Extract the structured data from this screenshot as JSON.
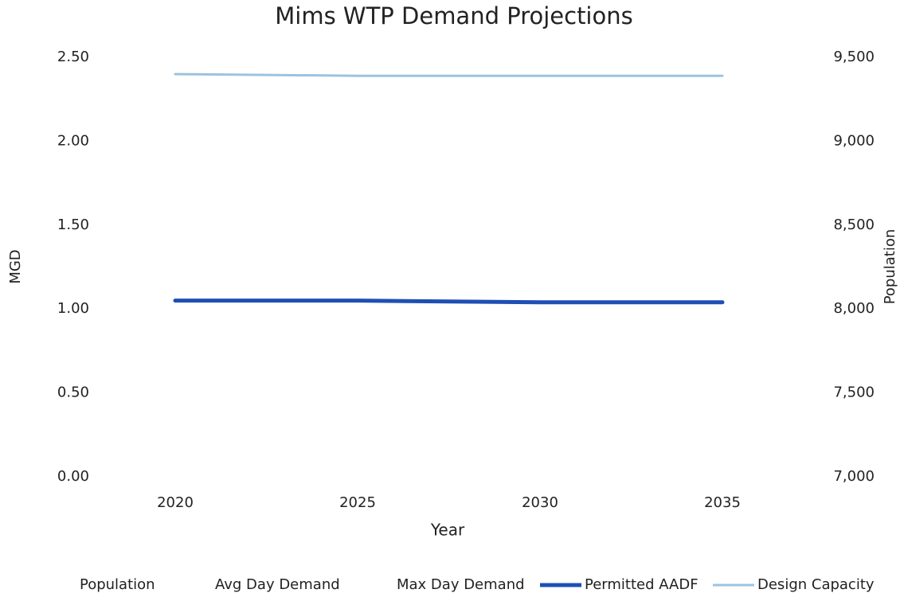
{
  "chart_data": {
    "type": "line",
    "title": "Mims WTP Demand Projections",
    "x_label": "Year",
    "y_label": "MGD",
    "y2_label": "Population",
    "categories": [
      "2020",
      "2025",
      "2030",
      "2035"
    ],
    "series": [
      {
        "name": "Population",
        "color": "#ffffff",
        "axis": "y2",
        "values": [
          null,
          null,
          null,
          null
        ]
      },
      {
        "name": "Avg Day Demand",
        "color": "#ffffff",
        "values": [
          null,
          null,
          null,
          null
        ]
      },
      {
        "name": "Max Day Demand",
        "color": "#ffffff",
        "values": [
          null,
          null,
          null,
          null
        ]
      },
      {
        "name": "Permitted AADF",
        "color": "#1f4fb5",
        "values": [
          1.05,
          1.05,
          1.04,
          1.04
        ]
      },
      {
        "name": "Design Capacity",
        "color": "#9cc3e0",
        "values": [
          2.4,
          2.39,
          2.39,
          2.39
        ]
      }
    ],
    "ylim": [
      0,
      2.5
    ],
    "yticks": [
      {
        "value": 0,
        "label": "0.00"
      },
      {
        "value": 0.5,
        "label": "0.50"
      },
      {
        "value": 1,
        "label": "1.00"
      },
      {
        "value": 1.5,
        "label": "1.50"
      },
      {
        "value": 2,
        "label": "2.00"
      },
      {
        "value": 2.5,
        "label": "2.50"
      }
    ],
    "y2lim": [
      7000,
      9500
    ],
    "y2ticks": [
      {
        "value": 7000,
        "label": "7,000"
      },
      {
        "value": 7500,
        "label": "7,500"
      },
      {
        "value": 8000,
        "label": "8,000"
      },
      {
        "value": 8500,
        "label": "8,500"
      },
      {
        "value": 9000,
        "label": "9,000"
      },
      {
        "value": 9500,
        "label": "9,500"
      }
    ],
    "grid": false,
    "legend": "bottom"
  }
}
